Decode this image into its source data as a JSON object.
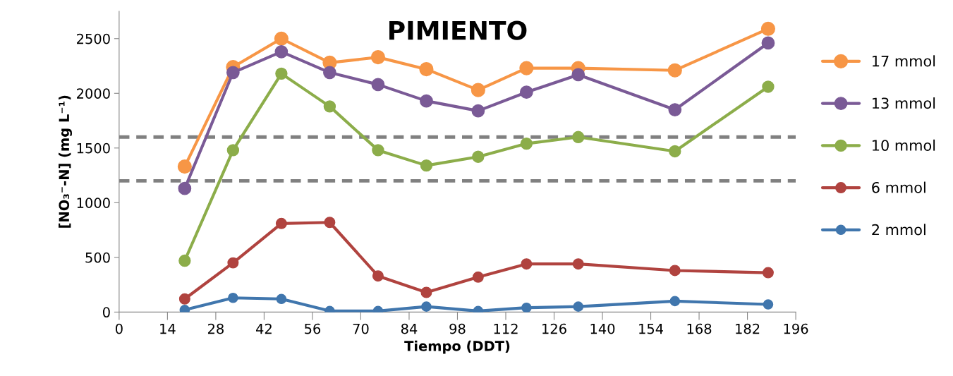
{
  "chart_data": {
    "type": "line",
    "title": "PIMIENTO",
    "xlabel": "Tiempo (DDT)",
    "ylabel": "[NO₃⁻-N] (mg L⁻¹)",
    "x": [
      19,
      33,
      47,
      61,
      75,
      89,
      104,
      118,
      133,
      161,
      188
    ],
    "series": [
      {
        "name": "17 mmol",
        "color": "#f79646",
        "values": [
          1330,
          2240,
          2500,
          2280,
          2330,
          2220,
          2030,
          2230,
          2230,
          2210,
          2590
        ]
      },
      {
        "name": "13 mmol",
        "color": "#7a5a96",
        "values": [
          1130,
          2190,
          2380,
          2190,
          2080,
          1930,
          1840,
          2010,
          2170,
          1850,
          2460
        ]
      },
      {
        "name": "10 mmol",
        "color": "#8cad4a",
        "values": [
          470,
          1480,
          2180,
          1880,
          1480,
          1340,
          1420,
          1540,
          1600,
          1470,
          2060
        ]
      },
      {
        "name": "6 mmol",
        "color": "#b0433f",
        "values": [
          120,
          450,
          810,
          820,
          330,
          180,
          320,
          440,
          440,
          380,
          360
        ]
      },
      {
        "name": "2 mmol",
        "color": "#4076ad",
        "values": [
          20,
          130,
          120,
          10,
          10,
          50,
          10,
          40,
          50,
          100,
          70
        ]
      }
    ],
    "xlim": [
      0,
      196
    ],
    "xticks": [
      0,
      14,
      28,
      42,
      56,
      70,
      84,
      98,
      112,
      126,
      140,
      154,
      168,
      182,
      196
    ],
    "ylim": [
      0,
      2750
    ],
    "yticks": [
      0,
      500,
      1000,
      1500,
      2000,
      2500
    ],
    "ref_lines": [
      {
        "axis": "y",
        "value": 1600,
        "color": "#808080",
        "line_style": "dashed"
      },
      {
        "axis": "y",
        "value": 1200,
        "color": "#808080",
        "line_style": "dashed"
      }
    ],
    "grid": false,
    "legend": "right",
    "marker": "circle",
    "line_style": "solid"
  }
}
